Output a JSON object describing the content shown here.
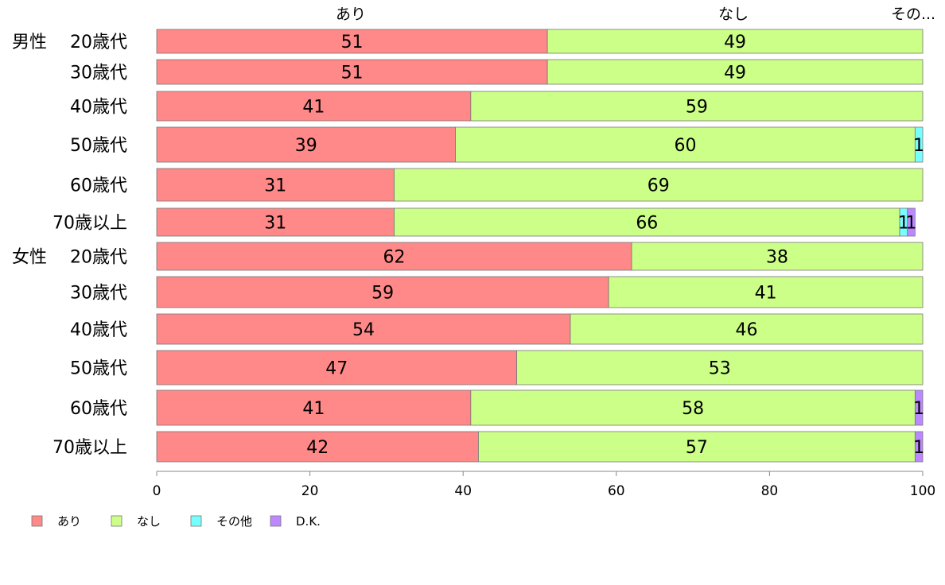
{
  "chart_data": {
    "type": "bar",
    "orientation": "horizontal",
    "stacked": true,
    "groups": [
      {
        "label": "男性",
        "rows": [
          0,
          5
        ]
      },
      {
        "label": "女性",
        "rows": [
          6,
          11
        ]
      }
    ],
    "categories": [
      "20歳代",
      "30歳代",
      "40歳代",
      "50歳代",
      "60歳代",
      "70歳以上",
      "20歳代",
      "30歳代",
      "40歳代",
      "50歳代",
      "60歳代",
      "70歳以上"
    ],
    "series": [
      {
        "name": "あり",
        "color": "#ff8888",
        "values": [
          51,
          51,
          41,
          39,
          31,
          31,
          62,
          59,
          54,
          47,
          41,
          42
        ]
      },
      {
        "name": "なし",
        "color": "#ccff88",
        "values": [
          49,
          49,
          59,
          60,
          69,
          66,
          38,
          41,
          46,
          53,
          58,
          57
        ]
      },
      {
        "name": "その他",
        "color": "#77ffff",
        "values": [
          0,
          0,
          0,
          1,
          0,
          1,
          0,
          0,
          0,
          0,
          0,
          0
        ]
      },
      {
        "name": "D.K.",
        "color": "#bb88ff",
        "values": [
          0,
          0,
          0,
          0,
          0,
          1,
          0,
          0,
          0,
          0,
          1,
          1
        ]
      }
    ],
    "top_labels": [
      "あり",
      "なし",
      "その..."
    ],
    "xlim": [
      0,
      100
    ],
    "xticks": [
      0,
      20,
      40,
      60,
      80,
      100
    ],
    "grid": false,
    "legend_position": "bottom-left"
  }
}
